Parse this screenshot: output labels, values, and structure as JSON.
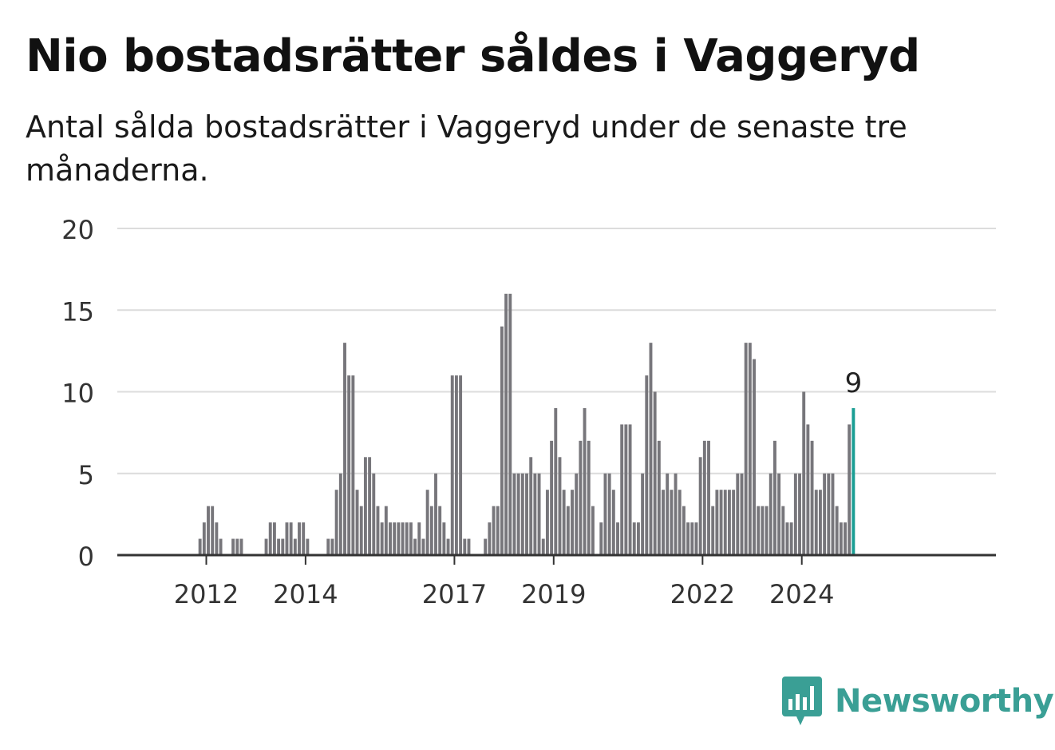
{
  "title": "Nio bostadsrätter såldes i Vaggeryd",
  "subtitle": "Antal sålda bostadsrätter i Vaggeryd under de senaste tre månaderna.",
  "brand": {
    "name": "Newsworthy",
    "color": "#3a9f95"
  },
  "chart_data": {
    "type": "bar",
    "title": "Nio bostadsrätter såldes i Vaggeryd",
    "subtitle": "Antal sålda bostadsrätter i Vaggeryd under de senaste tre månaderna.",
    "xlabel": "",
    "ylabel": "",
    "ylim": [
      0,
      20
    ],
    "yticks": [
      0,
      5,
      10,
      15,
      20
    ],
    "xtick_labels": [
      "2012",
      "2014",
      "2017",
      "2019",
      "2022",
      "2024"
    ],
    "xtick_index": [
      11,
      35,
      71,
      95,
      131,
      155
    ],
    "grid": true,
    "bar_color": "#77767b",
    "highlight_color": "#1a9e94",
    "highlight_label": "9",
    "values": [
      0,
      0,
      0,
      0,
      0,
      0,
      0,
      0,
      0,
      1,
      2,
      3,
      3,
      2,
      1,
      0,
      0,
      1,
      1,
      1,
      0,
      0,
      0,
      0,
      0,
      1,
      2,
      2,
      1,
      1,
      2,
      2,
      1,
      2,
      2,
      1,
      0,
      0,
      0,
      0,
      1,
      1,
      4,
      5,
      13,
      11,
      11,
      4,
      3,
      6,
      6,
      5,
      3,
      2,
      3,
      2,
      2,
      2,
      2,
      2,
      2,
      1,
      2,
      1,
      4,
      3,
      5,
      3,
      2,
      1,
      11,
      11,
      11,
      1,
      1,
      0,
      0,
      0,
      1,
      2,
      3,
      3,
      14,
      16,
      16,
      5,
      5,
      5,
      5,
      6,
      5,
      5,
      1,
      4,
      7,
      9,
      6,
      4,
      3,
      4,
      5,
      7,
      9,
      7,
      3,
      0,
      2,
      5,
      5,
      4,
      2,
      8,
      8,
      8,
      2,
      2,
      5,
      11,
      13,
      10,
      7,
      4,
      5,
      4,
      5,
      4,
      3,
      2,
      2,
      2,
      6,
      7,
      7,
      3,
      4,
      4,
      4,
      4,
      4,
      5,
      5,
      13,
      13,
      12,
      3,
      3,
      3,
      5,
      7,
      5,
      3,
      2,
      2,
      5,
      5,
      10,
      8,
      7,
      4,
      4,
      5,
      5,
      5,
      3,
      2,
      2,
      8,
      9
    ]
  }
}
